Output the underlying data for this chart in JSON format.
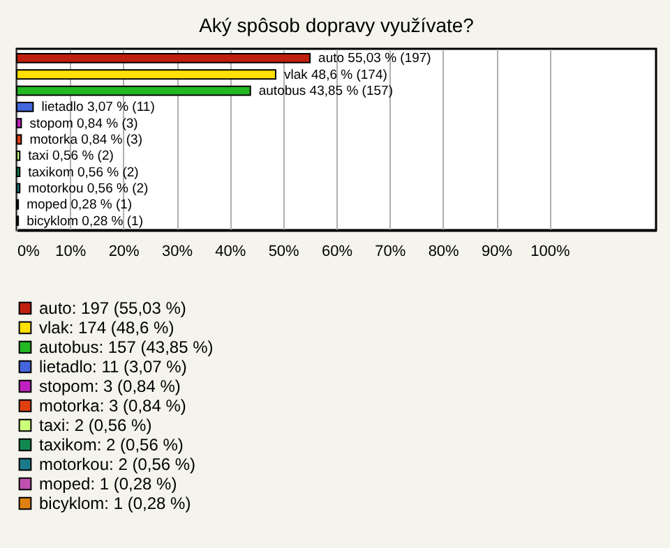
{
  "chart_data": {
    "type": "bar",
    "orientation": "horizontal",
    "title": "Aký spôsob dopravy využívate?",
    "categories": [
      null,
      null,
      null,
      null,
      null,
      null,
      null,
      null,
      null,
      null,
      null
    ],
    "series": [
      {
        "name": "auto: 197 (55,03 %)",
        "color": "#c0200f",
        "values": [
          55.03,
          null,
          null,
          null,
          null,
          null,
          null,
          null,
          null,
          null,
          null
        ],
        "value_labels": [
          "auto 55,03 % (197)",
          null,
          null,
          null,
          null,
          null,
          null,
          null,
          null,
          null,
          null
        ]
      },
      {
        "name": "vlak: 174 (48,6 %)",
        "color": "#ffe000",
        "values": [
          null,
          48.6,
          null,
          null,
          null,
          null,
          null,
          null,
          null,
          null,
          null
        ],
        "value_labels": [
          null,
          "vlak 48,6 % (174)",
          null,
          null,
          null,
          null,
          null,
          null,
          null,
          null,
          null
        ]
      },
      {
        "name": "autobus: 157 (43,85 %)",
        "color": "#22b822",
        "values": [
          null,
          null,
          43.85,
          null,
          null,
          null,
          null,
          null,
          null,
          null,
          null
        ],
        "value_labels": [
          null,
          null,
          "autobus 43,85 % (157)",
          null,
          null,
          null,
          null,
          null,
          null,
          null,
          null
        ]
      },
      {
        "name": "lietadlo: 11 (3,07 %)",
        "color": "#4466dd",
        "values": [
          null,
          null,
          null,
          3.07,
          null,
          null,
          null,
          null,
          null,
          null,
          null
        ],
        "value_labels": [
          null,
          null,
          null,
          "lietadlo 3,07 % (11)",
          null,
          null,
          null,
          null,
          null,
          null,
          null
        ]
      },
      {
        "name": "stopom: 3 (0,84 %)",
        "color": "#c020c0",
        "values": [
          null,
          null,
          null,
          null,
          0.84,
          null,
          null,
          null,
          null,
          null,
          null
        ],
        "value_labels": [
          null,
          null,
          null,
          null,
          "stopom 0,84 % (3)",
          null,
          null,
          null,
          null,
          null,
          null
        ]
      },
      {
        "name": "motorka: 3 (0,84 %)",
        "color": "#e04010",
        "values": [
          null,
          null,
          null,
          null,
          null,
          0.84,
          null,
          null,
          null,
          null,
          null
        ],
        "value_labels": [
          null,
          null,
          null,
          null,
          null,
          "motorka 0,84 % (3)",
          null,
          null,
          null,
          null,
          null
        ]
      },
      {
        "name": "taxi: 2 (0,56 %)",
        "color": "#ccff77",
        "values": [
          null,
          null,
          null,
          null,
          null,
          null,
          0.56,
          null,
          null,
          null,
          null
        ],
        "value_labels": [
          null,
          null,
          null,
          null,
          null,
          null,
          "taxi 0,56 % (2)",
          null,
          null,
          null,
          null
        ]
      },
      {
        "name": "taxikom: 2 (0,56 %)",
        "color": "#108850",
        "values": [
          null,
          null,
          null,
          null,
          null,
          null,
          null,
          0.56,
          null,
          null,
          null
        ],
        "value_labels": [
          null,
          null,
          null,
          null,
          null,
          null,
          null,
          "taxikom 0,56 % (2)",
          null,
          null,
          null
        ]
      },
      {
        "name": "motorkou: 2 (0,56 %)",
        "color": "#1a7a8a",
        "values": [
          null,
          null,
          null,
          null,
          null,
          null,
          null,
          null,
          0.56,
          null,
          null
        ],
        "value_labels": [
          null,
          null,
          null,
          null,
          null,
          null,
          null,
          null,
          "motorkou 0,56 % (2)",
          null,
          null
        ]
      },
      {
        "name": "moped: 1 (0,28 %)",
        "color": "#c050b0",
        "values": [
          null,
          null,
          null,
          null,
          null,
          null,
          null,
          null,
          null,
          0.28,
          null
        ],
        "value_labels": [
          null,
          null,
          null,
          null,
          null,
          null,
          null,
          null,
          null,
          "moped 0,28 % (1)",
          null
        ]
      },
      {
        "name": "bicyklom: 1 (0,28 %)",
        "color": "#e08010",
        "values": [
          null,
          null,
          null,
          null,
          null,
          null,
          null,
          null,
          null,
          null,
          0.28
        ],
        "value_labels": [
          null,
          null,
          null,
          null,
          null,
          null,
          null,
          null,
          null,
          null,
          "bicyklom 0,28 % (1)"
        ]
      }
    ],
    "xlim": [
      0,
      120
    ],
    "xticks": [
      {
        "value": 0,
        "label": "0%"
      },
      {
        "value": 10,
        "label": "10%"
      },
      {
        "value": 20,
        "label": "20%"
      },
      {
        "value": 30,
        "label": "30%"
      },
      {
        "value": 40,
        "label": "40%"
      },
      {
        "value": 50,
        "label": "50%"
      },
      {
        "value": 60,
        "label": "60%"
      },
      {
        "value": 70,
        "label": "70%"
      },
      {
        "value": 80,
        "label": "80%"
      },
      {
        "value": 90,
        "label": "90%"
      },
      {
        "value": 100,
        "label": "100%"
      }
    ],
    "grid": "x",
    "legend": "bottom",
    "tick_labels": "x"
  }
}
